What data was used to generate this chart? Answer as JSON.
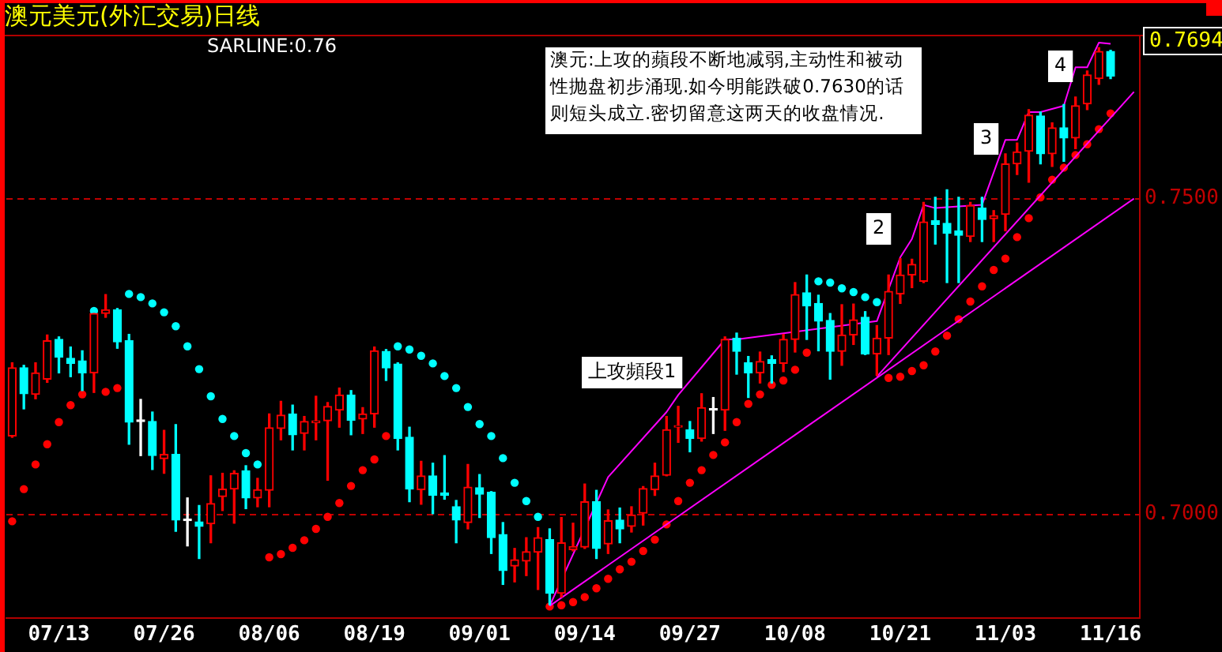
{
  "chart_data": {
    "type": "candlestick",
    "title": "澳元美元(外汇交易)日线",
    "categories": [
      null,
      null,
      null,
      null,
      "07/13",
      null,
      null,
      null,
      null,
      null,
      null,
      null,
      null,
      "07/26",
      null,
      null,
      null,
      null,
      null,
      null,
      null,
      null,
      "08/06",
      null,
      null,
      null,
      null,
      null,
      null,
      null,
      null,
      "08/19",
      null,
      null,
      null,
      null,
      null,
      null,
      null,
      null,
      "09/01",
      null,
      null,
      null,
      null,
      null,
      null,
      null,
      null,
      "09/14",
      null,
      null,
      null,
      null,
      null,
      null,
      null,
      null,
      "09/27",
      null,
      null,
      null,
      null,
      null,
      null,
      null,
      null,
      "10/08",
      null,
      null,
      null,
      null,
      null,
      null,
      null,
      null,
      "10/21",
      null,
      null,
      null,
      null,
      null,
      null,
      null,
      null,
      "11/03",
      null,
      null,
      null,
      null,
      null,
      null,
      null,
      null,
      "11/16",
      null,
      null
    ],
    "ohlc": [
      [
        0.7124,
        0.724,
        0.7122,
        0.7232
      ],
      [
        0.7232,
        0.7236,
        0.7167,
        0.7191
      ],
      [
        0.719,
        0.724,
        0.7183,
        0.7224
      ],
      [
        0.7214,
        0.7284,
        0.7209,
        0.7275
      ],
      [
        0.7277,
        0.7281,
        0.7224,
        0.7249
      ],
      [
        0.7247,
        0.7265,
        0.7218,
        0.7239
      ],
      [
        0.7243,
        0.7259,
        0.7196,
        0.7224
      ],
      [
        0.7224,
        0.7318,
        0.7193,
        0.7318
      ],
      [
        0.7318,
        0.7348,
        0.7312,
        0.7324
      ],
      [
        0.7324,
        0.7326,
        0.7263,
        0.7273
      ],
      [
        0.7275,
        0.7285,
        0.7111,
        0.7146
      ],
      [
        0.7147,
        0.7182,
        0.7093,
        0.7147
      ],
      [
        0.7147,
        0.7162,
        0.7071,
        0.7093
      ],
      [
        0.7088,
        0.7133,
        0.7065,
        0.7095
      ],
      [
        0.7095,
        0.7142,
        0.6973,
        0.6991
      ],
      [
        0.699,
        0.7026,
        0.695,
        0.699
      ],
      [
        0.6988,
        0.7014,
        0.693,
        0.6981
      ],
      [
        0.6985,
        0.7061,
        0.6955,
        0.7017
      ],
      [
        0.7028,
        0.7065,
        0.7006,
        0.704
      ],
      [
        0.704,
        0.7069,
        0.6986,
        0.7065
      ],
      [
        0.7069,
        0.7077,
        0.7009,
        0.7026
      ],
      [
        0.7026,
        0.7057,
        0.7012,
        0.7039
      ],
      [
        0.7038,
        0.7159,
        0.7012,
        0.7137
      ],
      [
        0.7136,
        0.7179,
        0.7118,
        0.7157
      ],
      [
        0.7159,
        0.7173,
        0.7102,
        0.7126
      ],
      [
        0.7128,
        0.7155,
        0.7102,
        0.7147
      ],
      [
        0.7145,
        0.7187,
        0.7118,
        0.7148
      ],
      [
        0.7148,
        0.7177,
        0.7054,
        0.7171
      ],
      [
        0.7165,
        0.72,
        0.7138,
        0.7189
      ],
      [
        0.7189,
        0.7196,
        0.7126,
        0.7149
      ],
      [
        0.7151,
        0.7169,
        0.7128,
        0.7159
      ],
      [
        0.7159,
        0.7265,
        0.7138,
        0.7259
      ],
      [
        0.7258,
        0.7261,
        0.7212,
        0.7232
      ],
      [
        0.7238,
        0.724,
        0.7102,
        0.712
      ],
      [
        0.7122,
        0.7138,
        0.702,
        0.704
      ],
      [
        0.7039,
        0.7084,
        0.7016,
        0.7061
      ],
      [
        0.7061,
        0.7081,
        0.7001,
        0.703
      ],
      [
        0.7034,
        0.7093,
        0.7024,
        0.703
      ],
      [
        0.7012,
        0.7022,
        0.6955,
        0.6991
      ],
      [
        0.6987,
        0.7079,
        0.6977,
        0.7043
      ],
      [
        0.7042,
        0.7063,
        0.6995,
        0.7032
      ],
      [
        0.7035,
        0.7036,
        0.6938,
        0.6963
      ],
      [
        0.6968,
        0.6987,
        0.6889,
        0.6911
      ],
      [
        0.6918,
        0.6946,
        0.6893,
        0.6928
      ],
      [
        0.6926,
        0.6963,
        0.6903,
        0.6941
      ],
      [
        0.694,
        0.6979,
        0.6881,
        0.6963
      ],
      [
        0.696,
        0.6977,
        0.6857,
        0.6875
      ],
      [
        0.6875,
        0.6995,
        0.6869,
        0.6955
      ],
      [
        0.6944,
        0.6986,
        0.6942,
        0.6949
      ],
      [
        0.6948,
        0.7048,
        0.6946,
        0.702
      ],
      [
        0.702,
        0.7038,
        0.693,
        0.6946
      ],
      [
        0.6953,
        0.7007,
        0.6938,
        0.699
      ],
      [
        0.6991,
        0.701,
        0.6955,
        0.6977
      ],
      [
        0.6981,
        0.7012,
        0.6972,
        0.6999
      ],
      [
        0.7002,
        0.7044,
        0.6983,
        0.7041
      ],
      [
        0.7039,
        0.7081,
        0.703,
        0.7061
      ],
      [
        0.7062,
        0.7155,
        0.7061,
        0.7134
      ],
      [
        0.7138,
        0.7171,
        0.7114,
        0.714
      ],
      [
        0.7134,
        0.7147,
        0.7099,
        0.712
      ],
      [
        0.712,
        0.7191,
        0.7116,
        0.7169
      ],
      [
        0.7165,
        0.7185,
        0.7128,
        0.7165
      ],
      [
        0.7165,
        0.7281,
        0.7133,
        0.7277
      ],
      [
        0.7279,
        0.7287,
        0.7222,
        0.7258
      ],
      [
        0.724,
        0.725,
        0.7185,
        0.7224
      ],
      [
        0.7224,
        0.7257,
        0.7208,
        0.7242
      ],
      [
        0.7245,
        0.7251,
        0.7208,
        0.7239
      ],
      [
        0.7239,
        0.7285,
        0.7226,
        0.7277
      ],
      [
        0.7277,
        0.7367,
        0.7257,
        0.7348
      ],
      [
        0.7351,
        0.7379,
        0.7277,
        0.733
      ],
      [
        0.7334,
        0.7347,
        0.7259,
        0.7306
      ],
      [
        0.7307,
        0.7318,
        0.7214,
        0.7258
      ],
      [
        0.7258,
        0.7332,
        0.7236,
        0.7284
      ],
      [
        0.7284,
        0.7333,
        0.7269,
        0.7308
      ],
      [
        0.7312,
        0.7321,
        0.7253,
        0.7254
      ],
      [
        0.7254,
        0.7299,
        0.722,
        0.7279
      ],
      [
        0.7279,
        0.7379,
        0.7253,
        0.7353
      ],
      [
        0.7349,
        0.7405,
        0.7334,
        0.7379
      ],
      [
        0.7379,
        0.7404,
        0.7359,
        0.7396
      ],
      [
        0.7369,
        0.7494,
        0.7367,
        0.7463
      ],
      [
        0.7465,
        0.7502,
        0.7428,
        0.7459
      ],
      [
        0.7461,
        0.7514,
        0.7367,
        0.7445
      ],
      [
        0.7449,
        0.7502,
        0.7367,
        0.7442
      ],
      [
        0.744,
        0.7494,
        0.7432,
        0.7489
      ],
      [
        0.7485,
        0.7502,
        0.7432,
        0.7467
      ],
      [
        0.7468,
        0.7481,
        0.7432,
        0.7473
      ],
      [
        0.7475,
        0.7571,
        0.7449,
        0.7555
      ],
      [
        0.7555,
        0.7588,
        0.7538,
        0.7574
      ],
      [
        0.7575,
        0.7641,
        0.7526,
        0.7632
      ],
      [
        0.7631,
        0.7637,
        0.7555,
        0.7571
      ],
      [
        0.7571,
        0.762,
        0.7551,
        0.7612
      ],
      [
        0.7612,
        0.7649,
        0.7559,
        0.7596
      ],
      [
        0.7596,
        0.7661,
        0.7579,
        0.7647
      ],
      [
        0.765,
        0.7702,
        0.7641,
        0.7696
      ],
      [
        0.769,
        0.7739,
        0.7681,
        0.7733
      ],
      [
        0.7733,
        0.7735,
        0.769,
        0.7694
      ],
      null,
      null
    ],
    "colors": [
      "#ff0000",
      "#00ffff",
      "#ff0000",
      "#ff0000",
      "#00ffff",
      "#00ffff",
      "#00ffff",
      "#ff0000",
      "#ff0000",
      "#00ffff",
      "#00ffff",
      "#ffffff",
      "#00ffff",
      "#ff0000",
      "#00ffff",
      "#ffffff",
      "#00ffff",
      "#ff0000",
      "#ff0000",
      "#ff0000",
      "#00ffff",
      "#ff0000",
      "#ff0000",
      "#ff0000",
      "#00ffff",
      "#ff0000",
      "#ff0000",
      "#ff0000",
      "#ff0000",
      "#00ffff",
      "#ff0000",
      "#ff0000",
      "#00ffff",
      "#00ffff",
      "#00ffff",
      "#ff0000",
      "#00ffff",
      "#00ffff",
      "#00ffff",
      "#ff0000",
      "#00ffff",
      "#00ffff",
      "#00ffff",
      "#ff0000",
      "#ff0000",
      "#ff0000",
      "#00ffff",
      "#ff0000",
      "#ff0000",
      "#ff0000",
      "#00ffff",
      "#ff0000",
      "#00ffff",
      "#ff0000",
      "#ff0000",
      "#ff0000",
      "#ff0000",
      "#ff0000",
      "#00ffff",
      "#ff0000",
      "#ffffff",
      "#ff0000",
      "#00ffff",
      "#00ffff",
      "#ff0000",
      "#00ffff",
      "#ff0000",
      "#ff0000",
      "#00ffff",
      "#00ffff",
      "#00ffff",
      "#ff0000",
      "#ff0000",
      "#00ffff",
      "#ff0000",
      "#ff0000",
      "#ff0000",
      "#ff0000",
      "#ff0000",
      "#00ffff",
      "#00ffff",
      "#00ffff",
      "#ff0000",
      "#00ffff",
      "#ff0000",
      "#ff0000",
      "#ff0000",
      "#ff0000",
      "#00ffff",
      "#ff0000",
      "#00ffff",
      "#ff0000",
      "#ff0000",
      "#ff0000",
      "#00ffff",
      null,
      null
    ],
    "series": [
      {
        "type": "scatter",
        "marker": "circle",
        "colors": [
          "#ff0000",
          "#ff0000",
          "#ff0000",
          "#ff0000",
          "#ff0000",
          "#ff0000",
          "#ff0000",
          "#00ffff",
          "#ff0000",
          "#ff0000",
          "#00ffff",
          "#00ffff",
          "#00ffff",
          "#00ffff",
          "#00ffff",
          "#00ffff",
          "#00ffff",
          "#00ffff",
          "#00ffff",
          "#00ffff",
          "#00ffff",
          "#00ffff",
          "#ff0000",
          "#ff0000",
          "#ff0000",
          "#ff0000",
          "#ff0000",
          "#ff0000",
          "#ff0000",
          "#ff0000",
          "#ff0000",
          "#ff0000",
          "#ff0000",
          "#00ffff",
          "#00ffff",
          "#00ffff",
          "#00ffff",
          "#00ffff",
          "#00ffff",
          "#00ffff",
          "#00ffff",
          "#00ffff",
          "#00ffff",
          "#00ffff",
          "#00ffff",
          "#00ffff",
          "#ff0000",
          "#ff0000",
          "#ff0000",
          "#ff0000",
          "#ff0000",
          "#ff0000",
          "#ff0000",
          "#ff0000",
          "#ff0000",
          "#ff0000",
          "#ff0000",
          "#ff0000",
          "#ff0000",
          "#ff0000",
          "#ff0000",
          "#ff0000",
          "#ff0000",
          "#ff0000",
          "#ff0000",
          "#ff0000",
          "#ff0000",
          "#ff0000",
          "#ff0000",
          "#00ffff",
          "#00ffff",
          "#00ffff",
          "#00ffff",
          "#00ffff",
          "#00ffff",
          "#ff0000",
          "#ff0000",
          "#ff0000",
          "#ff0000",
          "#ff0000",
          "#ff0000",
          "#ff0000",
          "#ff0000",
          "#ff0000",
          "#ff0000",
          "#ff0000",
          "#ff0000",
          "#ff0000",
          "#ff0000",
          "#ff0000",
          "#ff0000",
          "#ff0000",
          "#ff0000",
          "#ff0000",
          "#ff0000",
          null,
          null
        ],
        "values": [
          0.6989,
          0.704,
          0.7079,
          0.7111,
          0.7146,
          0.7173,
          0.719,
          0.7322,
          0.7194,
          0.72,
          0.7349,
          0.7344,
          0.7334,
          0.732,
          0.7298,
          0.7266,
          0.723,
          0.7187,
          0.7151,
          0.7124,
          0.7097,
          0.7079,
          0.6932,
          0.6937,
          0.6947,
          0.6959,
          0.6977,
          0.6996,
          0.7018,
          0.7045,
          0.707,
          0.7087,
          0.7124,
          0.7266,
          0.7261,
          0.7251,
          0.7239,
          0.7219,
          0.72,
          0.717,
          0.7143,
          0.7124,
          0.7089,
          0.705,
          0.7021,
          0.6996,
          0.6854,
          0.6856,
          0.6861,
          0.6869,
          0.6883,
          0.6898,
          0.6913,
          0.6925,
          0.6942,
          0.696,
          0.6984,
          0.7021,
          0.705,
          0.707,
          0.7094,
          0.7114,
          0.7146,
          0.7175,
          0.719,
          0.7205,
          0.7212,
          0.7229,
          0.7256,
          0.7369,
          0.7367,
          0.7358,
          0.7352,
          0.7344,
          0.7336,
          0.7216,
          0.7218,
          0.7227,
          0.7236,
          0.7258,
          0.7283,
          0.7309,
          0.7337,
          0.7361,
          0.7387,
          0.7405,
          0.7439,
          0.7469,
          0.7502,
          0.753,
          0.7549,
          0.7569,
          0.7586,
          0.761,
          0.7635,
          null,
          null
        ]
      },
      {
        "type": "line",
        "color": "#ff00ff",
        "values": [
          null,
          null,
          null,
          null,
          null,
          null,
          null,
          null,
          null,
          null,
          null,
          null,
          null,
          null,
          null,
          null,
          null,
          null,
          null,
          null,
          null,
          null,
          null,
          null,
          null,
          null,
          null,
          null,
          null,
          null,
          null,
          null,
          null,
          null,
          null,
          null,
          null,
          null,
          null,
          null,
          null,
          null,
          null,
          null,
          null,
          null,
          0.6855,
          null,
          null,
          null,
          null,
          null,
          null,
          null,
          null,
          null,
          null,
          null,
          null,
          null,
          null,
          null,
          null,
          null,
          null,
          null,
          null,
          null,
          null,
          null,
          null,
          null,
          null,
          null,
          null,
          null,
          null,
          null,
          null,
          null,
          null,
          null,
          null,
          null,
          null,
          null,
          null,
          null,
          null,
          null,
          null,
          null,
          null,
          null,
          null,
          null,
          0.75
        ]
      },
      {
        "type": "line",
        "color": "#ff00ff",
        "values": [
          null,
          null,
          null,
          null,
          null,
          null,
          null,
          null,
          null,
          null,
          null,
          null,
          null,
          null,
          null,
          null,
          null,
          null,
          null,
          null,
          null,
          null,
          null,
          null,
          null,
          null,
          null,
          null,
          null,
          null,
          null,
          null,
          null,
          null,
          null,
          null,
          null,
          null,
          null,
          null,
          null,
          null,
          null,
          null,
          null,
          null,
          null,
          null,
          null,
          null,
          null,
          null,
          null,
          null,
          null,
          null,
          null,
          null,
          null,
          null,
          null,
          null,
          null,
          null,
          null,
          null,
          null,
          null,
          null,
          null,
          null,
          null,
          null,
          null,
          0.7218,
          null,
          null,
          null,
          null,
          null,
          null,
          null,
          null,
          null,
          null,
          null,
          null,
          null,
          null,
          null,
          null,
          null,
          null,
          null,
          null,
          null,
          0.7669
        ]
      },
      {
        "type": "line",
        "color": "#ff00ff",
        "values": [
          null,
          null,
          null,
          null,
          null,
          null,
          null,
          null,
          null,
          null,
          null,
          null,
          null,
          null,
          null,
          null,
          null,
          null,
          null,
          null,
          null,
          null,
          null,
          null,
          null,
          null,
          null,
          null,
          null,
          null,
          null,
          null,
          null,
          null,
          null,
          null,
          null,
          null,
          null,
          null,
          null,
          null,
          null,
          null,
          null,
          null,
          0.6855,
          null,
          null,
          null,
          null,
          0.7059,
          null,
          null,
          null,
          null,
          0.7162,
          0.7189,
          null,
          null,
          null,
          0.7277,
          0.7277,
          null,
          null,
          null,
          null,
          null,
          null,
          null,
          null,
          null,
          null,
          null,
          0.7306,
          null,
          0.7407,
          0.7436,
          0.749,
          0.7485,
          null,
          null,
          null,
          0.749,
          null,
          0.7593,
          0.7593,
          0.7637,
          0.7637,
          null,
          0.7647,
          0.7708,
          0.7708,
          0.7747,
          0.7745,
          null,
          null
        ]
      }
    ],
    "ylim": [
      0.6836,
      0.7757
    ],
    "yticks": [
      {
        "value": 0.7,
        "label": "0.7000"
      },
      {
        "value": 0.75,
        "label": "0.7500"
      }
    ],
    "grid": "y",
    "annotations": [
      "SARLINE:0.76",
      "澳元:上攻的蘋段不断地减弱,主动性和被动性抛盘初步涌现.如今明能跌破0.7630的话则短头成立.密切留意这两天的收盘情况.",
      "上攻頻段1",
      "2",
      "3",
      "4",
      "0.7694"
    ]
  }
}
